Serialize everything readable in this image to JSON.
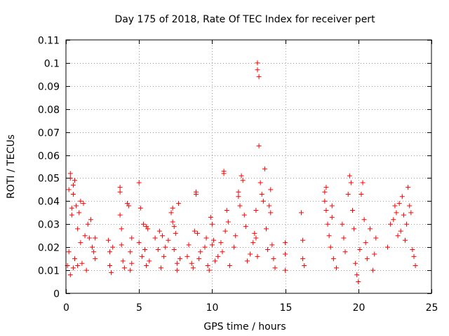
{
  "chart_data": {
    "type": "scatter",
    "title": "Day 175 of 2018, Rate Of TEC Index for receiver pert",
    "xlabel": "GPS time / hours",
    "ylabel": "ROTI / TECUs",
    "xlim": [
      0,
      25
    ],
    "ylim": [
      0,
      0.11
    ],
    "x_ticks": [
      0,
      5,
      10,
      15,
      20,
      25
    ],
    "x_tick_labels": [
      "0",
      "5",
      "10",
      "15",
      "20",
      "25"
    ],
    "y_ticks": [
      0,
      0.01,
      0.02,
      0.03,
      0.04,
      0.05,
      0.06,
      0.07,
      0.08,
      0.09,
      0.1,
      0.11
    ],
    "y_tick_labels": [
      "0",
      "0.01",
      "0.02",
      "0.03",
      "0.04",
      "0.05",
      "0.06",
      "0.07",
      "0.08",
      "0.09",
      "0.1",
      "0.11"
    ],
    "grid": true,
    "marker": "+",
    "color": "#ff0000",
    "series": [
      {
        "name": "ROTI",
        "points": [
          [
            0.1,
            0.012
          ],
          [
            0.2,
            0.018
          ],
          [
            0.2,
            0.045
          ],
          [
            0.3,
            0.052
          ],
          [
            0.3,
            0.05
          ],
          [
            0.4,
            0.037
          ],
          [
            0.4,
            0.034
          ],
          [
            0.5,
            0.047
          ],
          [
            0.5,
            0.043
          ],
          [
            0.6,
            0.049
          ],
          [
            0.7,
            0.038
          ],
          [
            0.8,
            0.028
          ],
          [
            0.9,
            0.035
          ],
          [
            1.0,
            0.04
          ],
          [
            1.0,
            0.022
          ],
          [
            1.2,
            0.039
          ],
          [
            1.3,
            0.025
          ],
          [
            1.5,
            0.03
          ],
          [
            1.6,
            0.024
          ],
          [
            1.7,
            0.032
          ],
          [
            1.8,
            0.02
          ],
          [
            1.9,
            0.018
          ],
          [
            2.0,
            0.024
          ],
          [
            2.0,
            0.015
          ],
          [
            0.3,
            0.008
          ],
          [
            0.5,
            0.011
          ],
          [
            0.6,
            0.015
          ],
          [
            0.8,
            0.012
          ],
          [
            1.1,
            0.013
          ],
          [
            1.4,
            0.01
          ],
          [
            2.9,
            0.023
          ],
          [
            3.0,
            0.018
          ],
          [
            3.0,
            0.012
          ],
          [
            3.1,
            0.009
          ],
          [
            3.2,
            0.02
          ],
          [
            3.7,
            0.046
          ],
          [
            3.7,
            0.044
          ],
          [
            3.7,
            0.034
          ],
          [
            3.8,
            0.028
          ],
          [
            3.8,
            0.021
          ],
          [
            3.9,
            0.014
          ],
          [
            4.0,
            0.011
          ],
          [
            4.2,
            0.039
          ],
          [
            4.3,
            0.038
          ],
          [
            4.4,
            0.018
          ],
          [
            4.5,
            0.024
          ],
          [
            4.5,
            0.013
          ],
          [
            4.4,
            0.01
          ],
          [
            5.0,
            0.048
          ],
          [
            5.1,
            0.037
          ],
          [
            5.0,
            0.022
          ],
          [
            5.2,
            0.016
          ],
          [
            5.3,
            0.03
          ],
          [
            5.4,
            0.019
          ],
          [
            5.5,
            0.029
          ],
          [
            5.6,
            0.028
          ],
          [
            5.5,
            0.012
          ],
          [
            5.7,
            0.014
          ],
          [
            6.1,
            0.024
          ],
          [
            6.3,
            0.019
          ],
          [
            6.4,
            0.027
          ],
          [
            6.5,
            0.011
          ],
          [
            6.6,
            0.025
          ],
          [
            6.7,
            0.016
          ],
          [
            6.8,
            0.02
          ],
          [
            7.0,
            0.023
          ],
          [
            7.2,
            0.035
          ],
          [
            7.3,
            0.037
          ],
          [
            7.3,
            0.031
          ],
          [
            7.4,
            0.029
          ],
          [
            7.5,
            0.026
          ],
          [
            7.4,
            0.019
          ],
          [
            7.6,
            0.013
          ],
          [
            7.7,
            0.039
          ],
          [
            7.6,
            0.01
          ],
          [
            7.8,
            0.015
          ],
          [
            8.3,
            0.016
          ],
          [
            8.4,
            0.021
          ],
          [
            8.6,
            0.013
          ],
          [
            8.7,
            0.011
          ],
          [
            8.8,
            0.027
          ],
          [
            8.9,
            0.044
          ],
          [
            8.9,
            0.043
          ],
          [
            9.0,
            0.026
          ],
          [
            9.1,
            0.015
          ],
          [
            9.2,
            0.018
          ],
          [
            9.5,
            0.02
          ],
          [
            9.6,
            0.024
          ],
          [
            9.7,
            0.012
          ],
          [
            9.8,
            0.01
          ],
          [
            9.9,
            0.033
          ],
          [
            10.0,
            0.03
          ],
          [
            10.0,
            0.021
          ],
          [
            10.1,
            0.023
          ],
          [
            10.2,
            0.014
          ],
          [
            10.4,
            0.016
          ],
          [
            10.6,
            0.022
          ],
          [
            10.7,
            0.018
          ],
          [
            10.8,
            0.053
          ],
          [
            10.8,
            0.052
          ],
          [
            10.9,
            0.027
          ],
          [
            11.0,
            0.036
          ],
          [
            11.1,
            0.031
          ],
          [
            11.2,
            0.012
          ],
          [
            11.5,
            0.02
          ],
          [
            11.6,
            0.025
          ],
          [
            11.8,
            0.044
          ],
          [
            11.8,
            0.042
          ],
          [
            11.9,
            0.038
          ],
          [
            12.0,
            0.051
          ],
          [
            12.1,
            0.049
          ],
          [
            12.2,
            0.034
          ],
          [
            12.3,
            0.029
          ],
          [
            12.4,
            0.014
          ],
          [
            12.6,
            0.017
          ],
          [
            12.8,
            0.022
          ],
          [
            12.9,
            0.026
          ],
          [
            13.0,
            0.036
          ],
          [
            13.0,
            0.024
          ],
          [
            13.1,
            0.016
          ],
          [
            13.1,
            0.1
          ],
          [
            13.1,
            0.097
          ],
          [
            13.2,
            0.094
          ],
          [
            13.2,
            0.064
          ],
          [
            13.3,
            0.048
          ],
          [
            13.4,
            0.043
          ],
          [
            13.5,
            0.04
          ],
          [
            13.6,
            0.054
          ],
          [
            13.7,
            0.028
          ],
          [
            13.8,
            0.019
          ],
          [
            13.9,
            0.038
          ],
          [
            14.0,
            0.035
          ],
          [
            14.0,
            0.045
          ],
          [
            14.1,
            0.021
          ],
          [
            14.2,
            0.015
          ],
          [
            14.3,
            0.011
          ],
          [
            15.0,
            0.022
          ],
          [
            15.0,
            0.017
          ],
          [
            15.0,
            0.01
          ],
          [
            16.1,
            0.035
          ],
          [
            16.2,
            0.023
          ],
          [
            16.2,
            0.015
          ],
          [
            16.3,
            0.012
          ],
          [
            17.7,
            0.044
          ],
          [
            17.7,
            0.04
          ],
          [
            17.8,
            0.046
          ],
          [
            17.8,
            0.036
          ],
          [
            17.9,
            0.03
          ],
          [
            18.0,
            0.025
          ],
          [
            18.1,
            0.02
          ],
          [
            18.2,
            0.038
          ],
          [
            18.2,
            0.033
          ],
          [
            18.3,
            0.015
          ],
          [
            18.5,
            0.011
          ],
          [
            18.9,
            0.03
          ],
          [
            19.0,
            0.024
          ],
          [
            19.1,
            0.018
          ],
          [
            19.3,
            0.043
          ],
          [
            19.4,
            0.051
          ],
          [
            19.5,
            0.048
          ],
          [
            19.6,
            0.036
          ],
          [
            19.7,
            0.028
          ],
          [
            19.8,
            0.013
          ],
          [
            19.9,
            0.008
          ],
          [
            20.0,
            0.005
          ],
          [
            20.1,
            0.019
          ],
          [
            20.2,
            0.043
          ],
          [
            20.3,
            0.048
          ],
          [
            20.4,
            0.032
          ],
          [
            20.5,
            0.022
          ],
          [
            20.6,
            0.015
          ],
          [
            20.8,
            0.028
          ],
          [
            21.0,
            0.01
          ],
          [
            21.1,
            0.017
          ],
          [
            21.2,
            0.024
          ],
          [
            22.0,
            0.02
          ],
          [
            22.2,
            0.03
          ],
          [
            22.4,
            0.032
          ],
          [
            22.5,
            0.038
          ],
          [
            22.6,
            0.035
          ],
          [
            22.7,
            0.025
          ],
          [
            22.8,
            0.039
          ],
          [
            22.9,
            0.027
          ],
          [
            23.0,
            0.042
          ],
          [
            23.1,
            0.034
          ],
          [
            23.2,
            0.023
          ],
          [
            23.3,
            0.03
          ],
          [
            23.4,
            0.046
          ],
          [
            23.5,
            0.038
          ],
          [
            23.6,
            0.035
          ],
          [
            23.7,
            0.019
          ],
          [
            23.8,
            0.016
          ],
          [
            23.9,
            0.012
          ]
        ]
      }
    ]
  }
}
